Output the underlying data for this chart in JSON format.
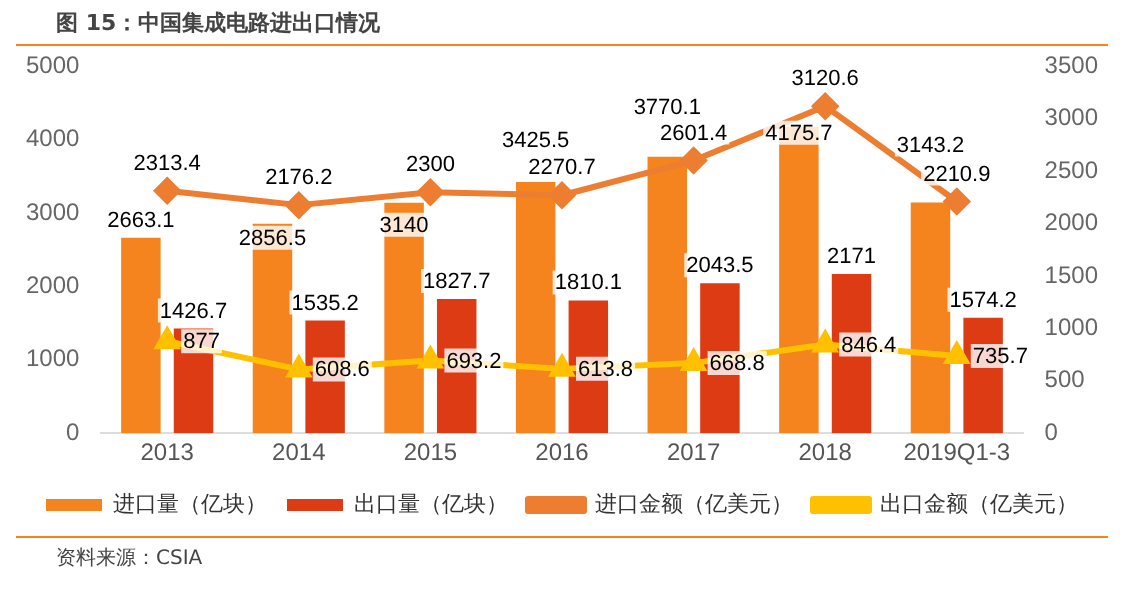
{
  "chart_data": {
    "type": "bar",
    "title": "图 15：中国集成电路进出口情况",
    "categories": [
      "2013",
      "2014",
      "2015",
      "2016",
      "2017",
      "2018",
      "2019Q1-3"
    ],
    "series": [
      {
        "name": "进口量（亿块）",
        "color": "#f5841f",
        "values": [
          2663.1,
          2856.5,
          3140,
          3425.5,
          3770.1,
          4175.7,
          3143.2
        ]
      },
      {
        "name": "出口量（亿块）",
        "color": "#dd3b14",
        "values": [
          1426.7,
          1535.2,
          1827.7,
          1810.1,
          2043.5,
          2171,
          1574.2
        ]
      },
      {
        "name": "进口金额（亿美元）",
        "type": "line",
        "axis": "y2",
        "marker": "diamond",
        "color": "#ed7d31",
        "values": [
          2313.4,
          2176.2,
          2300,
          2270.7,
          2601.4,
          3120.6,
          2210.9
        ]
      },
      {
        "name": "出口金额（亿美元）",
        "type": "line",
        "axis": "y2",
        "marker": "triangle",
        "color": "#ffc000",
        "values": [
          877,
          608.6,
          693.2,
          613.8,
          668.8,
          846.4,
          735.7
        ]
      }
    ],
    "ylim": [
      0,
      5000
    ],
    "yticks": [
      0,
      1000,
      2000,
      3000,
      4000,
      5000
    ],
    "y2lim": [
      0,
      3500
    ],
    "y2ticks": [
      0,
      500,
      1000,
      1500,
      2000,
      2500,
      3000,
      3500
    ],
    "grid": false,
    "legend": "bottom",
    "data_labels": true,
    "annotations": [
      "资料来源：CSIA"
    ]
  }
}
